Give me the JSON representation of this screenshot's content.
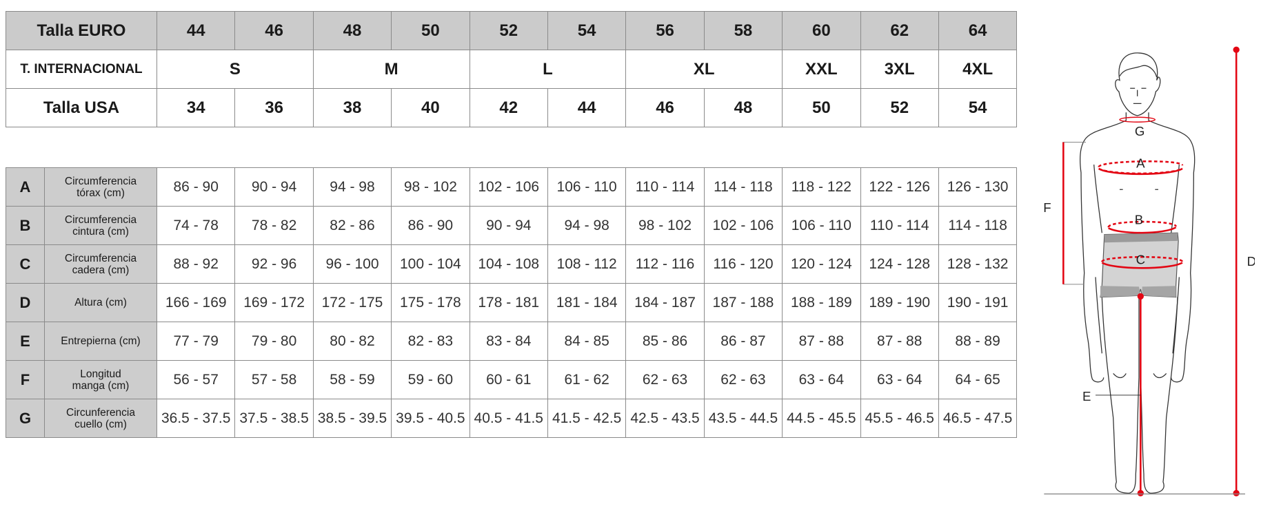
{
  "size_table": {
    "euro_label": "Talla EURO",
    "euro": [
      "44",
      "46",
      "48",
      "50",
      "52",
      "54",
      "56",
      "58",
      "60",
      "62",
      "64"
    ],
    "intl_label": "T. INTERNACIONAL",
    "intl": [
      {
        "label": "S",
        "span": 2
      },
      {
        "label": "M",
        "span": 2
      },
      {
        "label": "L",
        "span": 2
      },
      {
        "label": "XL",
        "span": 2
      },
      {
        "label": "XXL",
        "span": 1
      },
      {
        "label": "3XL",
        "span": 1
      },
      {
        "label": "4XL",
        "span": 1
      }
    ],
    "usa_label": "Talla USA",
    "usa": [
      "34",
      "36",
      "38",
      "40",
      "42",
      "44",
      "46",
      "48",
      "50",
      "52",
      "54"
    ]
  },
  "measurements": [
    {
      "letter": "A",
      "label": "Circumferencia\ntórax (cm)",
      "values": [
        "86 - 90",
        "90 - 94",
        "94 - 98",
        "98 - 102",
        "102 - 106",
        "106 - 110",
        "110 - 114",
        "114 - 118",
        "118 - 122",
        "122 - 126",
        "126 - 130"
      ]
    },
    {
      "letter": "B",
      "label": "Circumferencia\ncintura (cm)",
      "values": [
        "74 - 78",
        "78 - 82",
        "82 - 86",
        "86 - 90",
        "90 - 94",
        "94 - 98",
        "98 - 102",
        "102 - 106",
        "106 - 110",
        "110 - 114",
        "114 - 118"
      ]
    },
    {
      "letter": "C",
      "label": "Circumferencia\ncadera (cm)",
      "values": [
        "88 - 92",
        "92 - 96",
        "96 - 100",
        "100 - 104",
        "104 - 108",
        "108 - 112",
        "112 - 116",
        "116 - 120",
        "120 - 124",
        "124 - 128",
        "128 - 132"
      ]
    },
    {
      "letter": "D",
      "label": "Altura (cm)",
      "values": [
        "166 - 169",
        "169 - 172",
        "172 - 175",
        "175 - 178",
        "178 - 181",
        "181 - 184",
        "184 - 187",
        "187 - 188",
        "188 - 189",
        "189 - 190",
        "190 - 191"
      ]
    },
    {
      "letter": "E",
      "label": "Entrepierna (cm)",
      "values": [
        "77 - 79",
        "79 - 80",
        "80 - 82",
        "82 - 83",
        "83 - 84",
        "84 - 85",
        "85 - 86",
        "86 - 87",
        "87 - 88",
        "87 - 88",
        "88 - 89"
      ]
    },
    {
      "letter": "F",
      "label": "Longitud\nmanga (cm)",
      "values": [
        "56 - 57",
        "57 - 58",
        "58 - 59",
        "59 - 60",
        "60 - 61",
        "61 - 62",
        "62 - 63",
        "62 - 63",
        "63 - 64",
        "63 - 64",
        "64 - 65"
      ]
    },
    {
      "letter": "G",
      "label": "Circunferencia\ncuello (cm)",
      "values": [
        "36.5 - 37.5",
        "37.5 - 38.5",
        "38.5 - 39.5",
        "39.5 - 40.5",
        "40.5 - 41.5",
        "41.5 - 42.5",
        "42.5 - 43.5",
        "43.5 - 44.5",
        "44.5 - 45.5",
        "45.5 - 46.5",
        "46.5 - 47.5"
      ]
    }
  ],
  "figure": {
    "labels": {
      "A": "A",
      "B": "B",
      "C": "C",
      "D": "D",
      "E": "E",
      "F": "F",
      "G": "G"
    },
    "accent_color": "#e30613"
  }
}
